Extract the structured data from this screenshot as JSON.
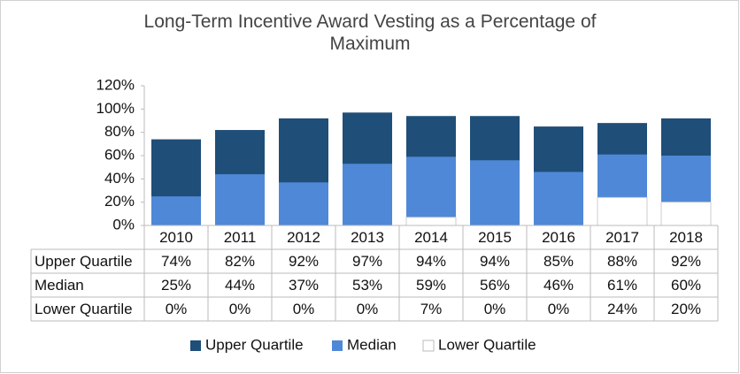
{
  "chart_data": {
    "type": "overlap-bar",
    "title": "Long-Term Incentive Award Vesting as a Percentage of Maximum",
    "categories": [
      "2010",
      "2011",
      "2012",
      "2013",
      "2014",
      "2015",
      "2016",
      "2017",
      "2018"
    ],
    "series": [
      {
        "name": "Upper Quartile",
        "color": "#1f4e79",
        "values": [
          74,
          82,
          92,
          97,
          94,
          94,
          85,
          88,
          92
        ],
        "value_labels": [
          "74%",
          "82%",
          "92%",
          "97%",
          "94%",
          "94%",
          "85%",
          "88%",
          "92%"
        ]
      },
      {
        "name": "Median",
        "color": "#4f88d6",
        "values": [
          25,
          44,
          37,
          53,
          59,
          56,
          46,
          61,
          60
        ],
        "value_labels": [
          "25%",
          "44%",
          "37%",
          "53%",
          "59%",
          "56%",
          "46%",
          "61%",
          "60%"
        ]
      },
      {
        "name": "Lower Quartile",
        "color": "#ffffff",
        "values": [
          0,
          0,
          0,
          0,
          7,
          0,
          0,
          24,
          20
        ],
        "value_labels": [
          "0%",
          "0%",
          "0%",
          "0%",
          "7%",
          "0%",
          "0%",
          "24%",
          "20%"
        ]
      }
    ],
    "ylim": [
      0,
      120
    ],
    "yticks": [
      {
        "value": 0,
        "label": "0%"
      },
      {
        "value": 20,
        "label": "20%"
      },
      {
        "value": 40,
        "label": "40%"
      },
      {
        "value": 60,
        "label": "60%"
      },
      {
        "value": 80,
        "label": "80%"
      },
      {
        "value": 100,
        "label": "100%"
      },
      {
        "value": 120,
        "label": "120%"
      }
    ],
    "grid": false,
    "legend": "bottom"
  }
}
